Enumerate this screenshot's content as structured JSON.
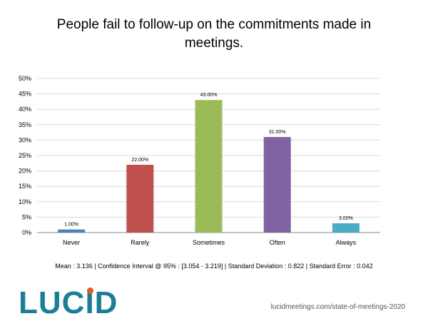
{
  "chart_data": {
    "type": "bar",
    "title": "People fail to follow-up on the commitments made in\nmeetings.",
    "categories": [
      "Never",
      "Rarely",
      "Sometimes",
      "Often",
      "Always"
    ],
    "values": [
      1,
      22,
      43,
      31,
      3
    ],
    "data_labels": [
      "1.00%",
      "22.00%",
      "43.00%",
      "31.00%",
      "3.00%"
    ],
    "colors": [
      "#4f81bd",
      "#c0504d",
      "#9bbb59",
      "#8064a2",
      "#4bacc6"
    ],
    "ylim": [
      0,
      50
    ],
    "yticks": [
      0,
      5,
      10,
      15,
      20,
      25,
      30,
      35,
      40,
      45,
      50
    ],
    "ytick_labels": [
      "0%",
      "5%",
      "10%",
      "15%",
      "20%",
      "25%",
      "30%",
      "35%",
      "40%",
      "45%",
      "50%"
    ],
    "grid": true,
    "xlabel": "",
    "ylabel": ""
  },
  "stats_text": "Mean : 3.136  |  Confidence Interval @ 95% : [3.054 - 3.219]  |  Standard Deviation : 0.822  |  Standard Error : 0.042",
  "logo_text": "LUCID",
  "source_text": "lucidmeetings.com/state-of-meetings-2020"
}
